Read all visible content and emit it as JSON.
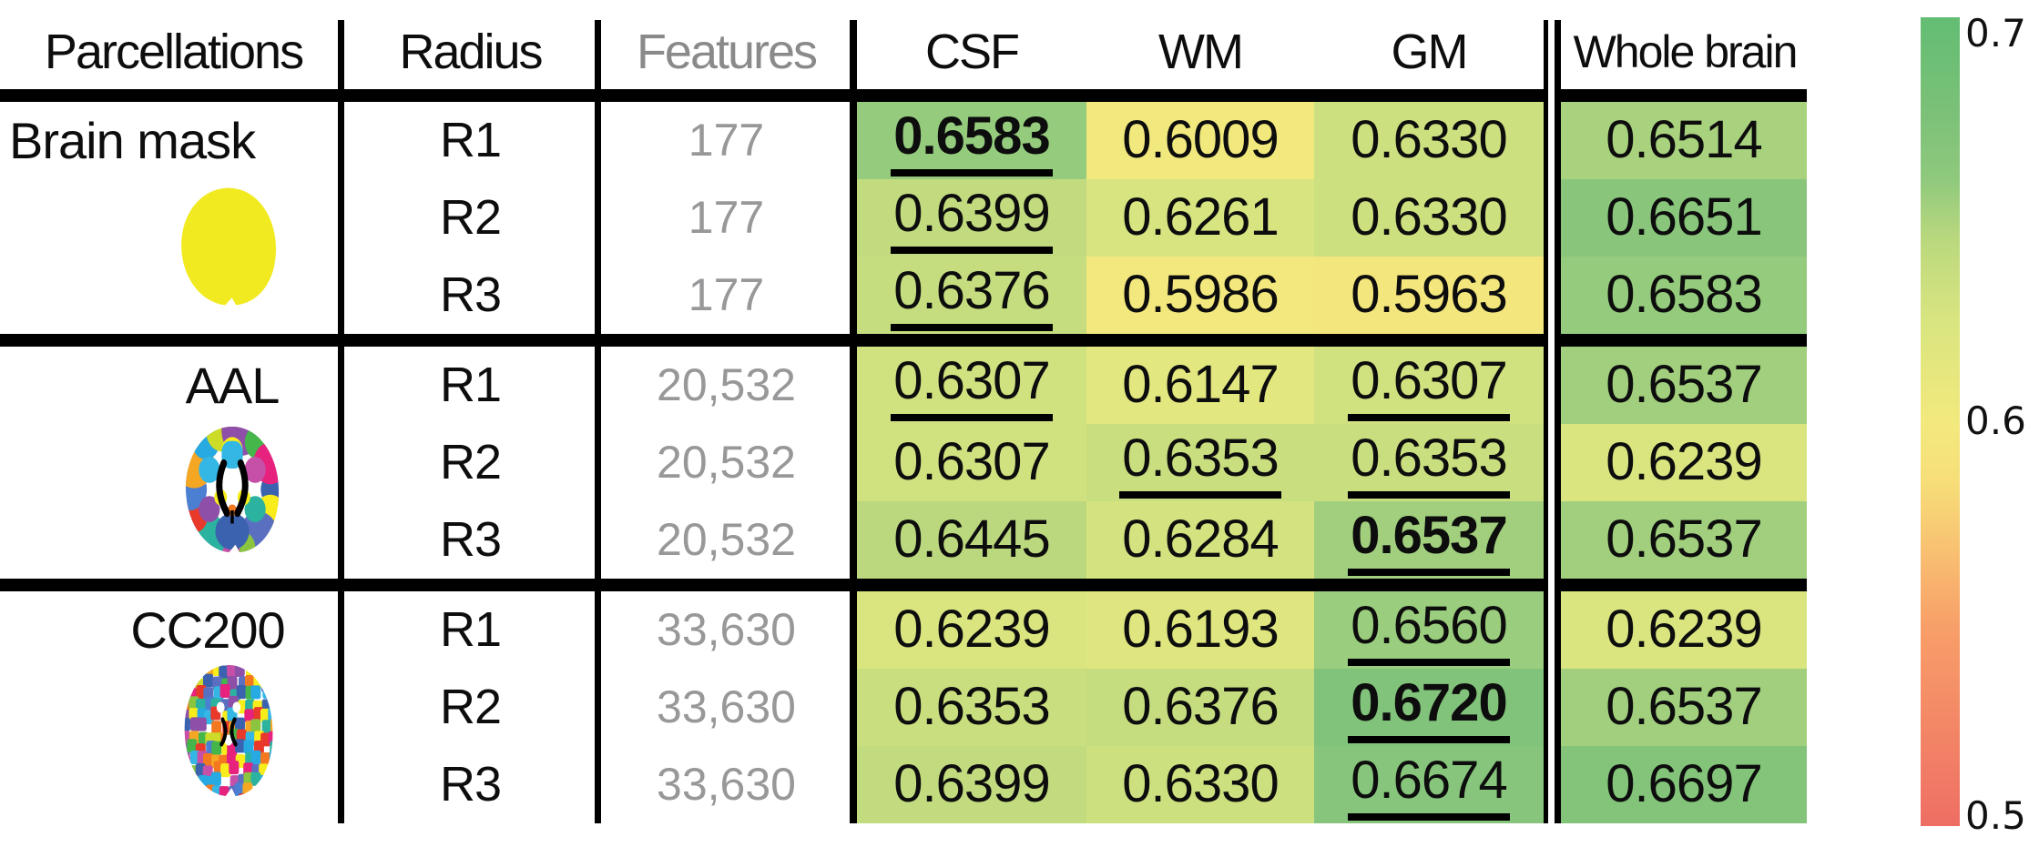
{
  "header": {
    "parcellations": "Parcellations",
    "radius": "Radius",
    "features": "Features",
    "csf": "CSF",
    "wm": "WM",
    "gm": "GM",
    "whole_brain": "Whole brain"
  },
  "colorbar": {
    "top_label": "0.7",
    "mid_label": "0.6",
    "bottom_label": "0.5",
    "min": 0.5,
    "max": 0.7
  },
  "chart_data": {
    "type": "heatmap",
    "columns": [
      "CSF",
      "WM",
      "GM",
      "Whole brain"
    ],
    "column_keys": [
      "csf",
      "wm",
      "gm",
      "wb"
    ],
    "color_scale": {
      "min": 0.5,
      "max": 0.7,
      "tick_labels": [
        "0.7",
        "0.6",
        "0.5"
      ],
      "stops": [
        {
          "v": 0.5,
          "c": "#ee6e64"
        },
        {
          "v": 0.55,
          "c": "#f8a069"
        },
        {
          "v": 0.585,
          "c": "#f7de79"
        },
        {
          "v": 0.6,
          "c": "#f2e97d"
        },
        {
          "v": 0.625,
          "c": "#d9e580"
        },
        {
          "v": 0.645,
          "c": "#bad87e"
        },
        {
          "v": 0.66,
          "c": "#8fc97d"
        },
        {
          "v": 0.675,
          "c": "#7dc179"
        },
        {
          "v": 0.7,
          "c": "#63bd73"
        }
      ]
    },
    "sections": [
      {
        "parcellation": "Brain mask",
        "icon": "brain-mask-icon",
        "rows": [
          {
            "radius": "R1",
            "features": "177",
            "cells": {
              "csf": {
                "v": "0.6583",
                "bold": true,
                "underline": true
              },
              "wm": {
                "v": "0.6009"
              },
              "gm": {
                "v": "0.6330"
              },
              "wb": {
                "v": "0.6514"
              }
            }
          },
          {
            "radius": "R2",
            "features": "177",
            "cells": {
              "csf": {
                "v": "0.6399",
                "underline": true
              },
              "wm": {
                "v": "0.6261"
              },
              "gm": {
                "v": "0.6330"
              },
              "wb": {
                "v": "0.6651"
              }
            }
          },
          {
            "radius": "R3",
            "features": "177",
            "cells": {
              "csf": {
                "v": "0.6376",
                "underline": true
              },
              "wm": {
                "v": "0.5986"
              },
              "gm": {
                "v": "0.5963"
              },
              "wb": {
                "v": "0.6583"
              }
            }
          }
        ]
      },
      {
        "parcellation": "AAL",
        "icon": "aal-icon",
        "rows": [
          {
            "radius": "R1",
            "features": "20,532",
            "cells": {
              "csf": {
                "v": "0.6307",
                "underline": true
              },
              "wm": {
                "v": "0.6147"
              },
              "gm": {
                "v": "0.6307",
                "underline": true
              },
              "wb": {
                "v": "0.6537"
              }
            }
          },
          {
            "radius": "R2",
            "features": "20,532",
            "cells": {
              "csf": {
                "v": "0.6307"
              },
              "wm": {
                "v": "0.6353",
                "underline": true
              },
              "gm": {
                "v": "0.6353",
                "underline": true
              },
              "wb": {
                "v": "0.6239"
              }
            }
          },
          {
            "radius": "R3",
            "features": "20,532",
            "cells": {
              "csf": {
                "v": "0.6445"
              },
              "wm": {
                "v": "0.6284"
              },
              "gm": {
                "v": "0.6537",
                "bold": true,
                "underline": true
              },
              "wb": {
                "v": "0.6537"
              }
            }
          }
        ]
      },
      {
        "parcellation": "CC200",
        "icon": "cc200-icon",
        "rows": [
          {
            "radius": "R1",
            "features": "33,630",
            "cells": {
              "csf": {
                "v": "0.6239"
              },
              "wm": {
                "v": "0.6193"
              },
              "gm": {
                "v": "0.6560",
                "underline": true
              },
              "wb": {
                "v": "0.6239"
              }
            }
          },
          {
            "radius": "R2",
            "features": "33,630",
            "cells": {
              "csf": {
                "v": "0.6353"
              },
              "wm": {
                "v": "0.6376"
              },
              "gm": {
                "v": "0.6720",
                "bold": true,
                "underline": true
              },
              "wb": {
                "v": "0.6537"
              }
            }
          },
          {
            "radius": "R3",
            "features": "33,630",
            "cells": {
              "csf": {
                "v": "0.6399"
              },
              "wm": {
                "v": "0.6330"
              },
              "gm": {
                "v": "0.6674",
                "underline": true
              },
              "wb": {
                "v": "0.6697"
              }
            }
          }
        ]
      }
    ]
  },
  "icons": {
    "brain_mask_color": "#f2ea20",
    "palette": [
      "#3a62ae",
      "#4a7fd1",
      "#35b7e5",
      "#2bb3a0",
      "#45b649",
      "#8bc53f",
      "#cddc29",
      "#f8ec1b",
      "#f5a623",
      "#f47820",
      "#e8392b",
      "#e6227e",
      "#c650a8",
      "#8e4fa8",
      "#5a6fc0",
      "#27a9e1"
    ]
  }
}
